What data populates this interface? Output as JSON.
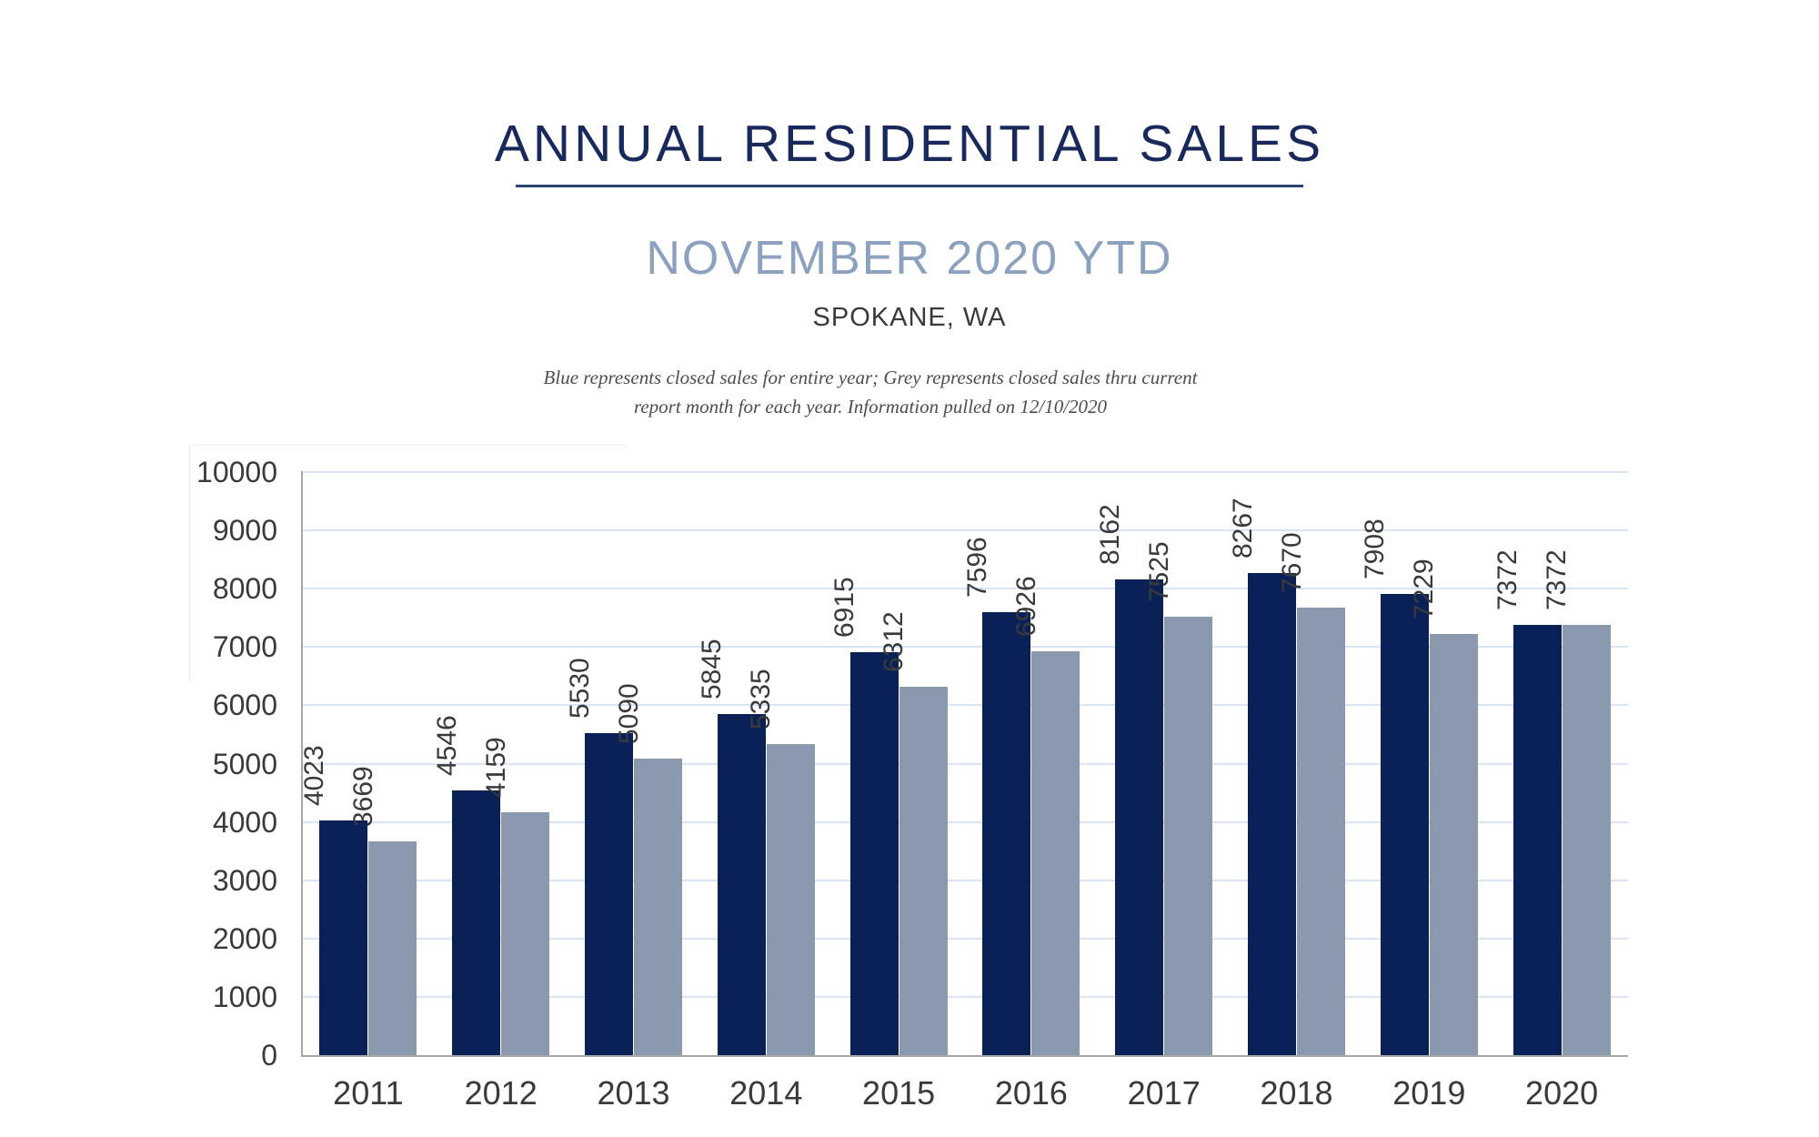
{
  "page": {
    "title": "ANNUAL RESIDENTIAL SALES",
    "subtitle": "NOVEMBER 2020 YTD",
    "location": "SPOKANE, WA",
    "note_line1": "Blue represents closed sales for entire year; Grey represents closed sales thru current",
    "note_line2": "report month for each year.  Information pulled on 12/10/2020"
  },
  "colors": {
    "title_navy": "#1a295c",
    "underline_navy": "#2d4274",
    "subtitle_grey_blue": "#8ba1bf",
    "bar_navy": "#0a2158",
    "bar_grey": "#8b99af",
    "gridline": "#dae3f1",
    "axis_grey": "#a6a6a6",
    "label_text": "#3a3a3a"
  },
  "chart_data": {
    "type": "bar",
    "title": "ANNUAL RESIDENTIAL SALES",
    "subtitle": "NOVEMBER 2020 YTD",
    "location": "SPOKANE, WA",
    "categories": [
      "2011",
      "2012",
      "2013",
      "2014",
      "2015",
      "2016",
      "2017",
      "2018",
      "2019",
      "2020"
    ],
    "series": [
      {
        "name": "Blue - closed sales for entire year",
        "color": "#0a2158",
        "values": [
          4023,
          4546,
          5530,
          5845,
          6915,
          7596,
          8162,
          8267,
          7908,
          7372
        ]
      },
      {
        "name": "Grey - closed sales thru current report month",
        "color": "#8b99af",
        "values": [
          3669,
          4159,
          5090,
          5335,
          6312,
          6926,
          7525,
          7670,
          7229,
          7372
        ]
      }
    ],
    "xlabel": "",
    "ylabel": "",
    "ylim": [
      0,
      10000
    ],
    "ytick_step": 1000,
    "grid": true,
    "legend_position": "none",
    "bar_value_labels_rotated": true
  }
}
